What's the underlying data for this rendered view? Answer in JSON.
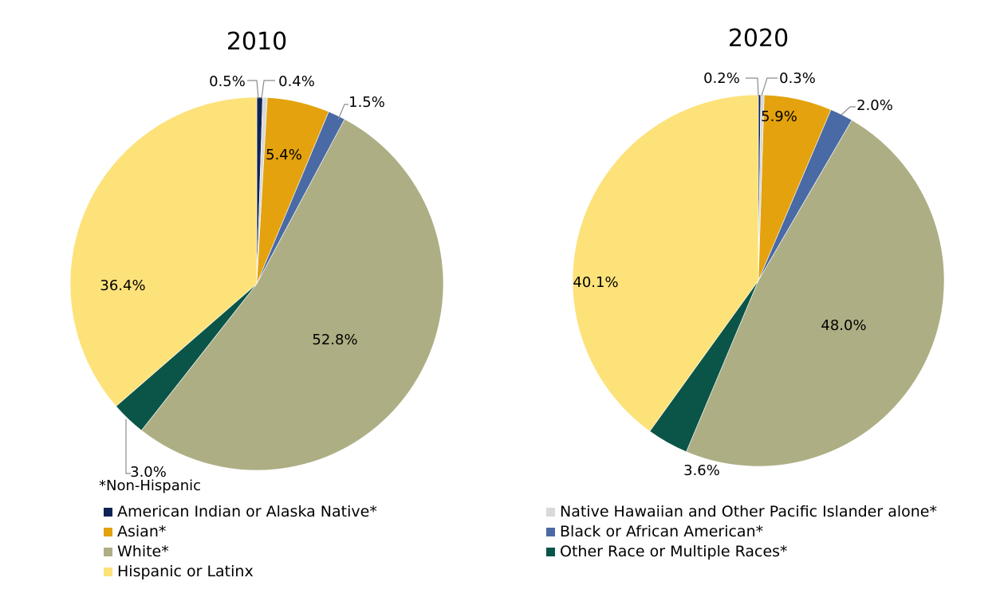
{
  "footnote": "*Non-Hispanic",
  "colors": {
    "aian": "#0f2456",
    "nhpi": "#d9d9d9",
    "asian": "#e3a20e",
    "black": "#4a6aa5",
    "white": "#aeae85",
    "other": "#0b5548",
    "hispanic": "#fde27a"
  },
  "legend": {
    "left": [
      {
        "label": "American Indian or Alaska Native*",
        "color_key": "aian"
      },
      {
        "label": "Asian*",
        "color_key": "asian"
      },
      {
        "label": "White*",
        "color_key": "white"
      },
      {
        "label": "Hispanic or Latinx",
        "color_key": "hispanic"
      }
    ],
    "right": [
      {
        "label": "Native Hawaiian and Other Pacific Islander alone*",
        "color_key": "nhpi"
      },
      {
        "label": "Black or African American*",
        "color_key": "black"
      },
      {
        "label": "Other Race or Multiple Races*",
        "color_key": "other"
      }
    ]
  },
  "chart_data": [
    {
      "type": "pie",
      "title": "2010",
      "slices": [
        {
          "name": "American Indian or Alaska Native*",
          "value": 0.5,
          "label": "0.5%",
          "color_key": "aian"
        },
        {
          "name": "Native Hawaiian and Other Pacific Islander alone*",
          "value": 0.4,
          "label": "0.4%",
          "color_key": "nhpi"
        },
        {
          "name": "Asian*",
          "value": 5.4,
          "label": "5.4%",
          "color_key": "asian"
        },
        {
          "name": "Black or African American*",
          "value": 1.5,
          "label": "1.5%",
          "color_key": "black"
        },
        {
          "name": "White*",
          "value": 52.8,
          "label": "52.8%",
          "color_key": "white"
        },
        {
          "name": "Other Race or Multiple Races*",
          "value": 3.0,
          "label": "3.0%",
          "color_key": "other"
        },
        {
          "name": "Hispanic or Latinx",
          "value": 36.4,
          "label": "36.4%",
          "color_key": "hispanic"
        }
      ]
    },
    {
      "type": "pie",
      "title": "2020",
      "slices": [
        {
          "name": "American Indian or Alaska Native*",
          "value": 0.2,
          "label": "0.2%",
          "color_key": "aian"
        },
        {
          "name": "Native Hawaiian and Other Pacific Islander alone*",
          "value": 0.3,
          "label": "0.3%",
          "color_key": "nhpi"
        },
        {
          "name": "Asian*",
          "value": 5.9,
          "label": "5.9%",
          "color_key": "asian"
        },
        {
          "name": "Black or African American*",
          "value": 2.0,
          "label": "2.0%",
          "color_key": "black"
        },
        {
          "name": "White*",
          "value": 48.0,
          "label": "48.0%",
          "color_key": "white"
        },
        {
          "name": "Other Race or Multiple Races*",
          "value": 3.6,
          "label": "3.6%",
          "color_key": "other"
        },
        {
          "name": "Hispanic or Latinx",
          "value": 40.1,
          "label": "40.1%",
          "color_key": "hispanic"
        }
      ]
    }
  ]
}
